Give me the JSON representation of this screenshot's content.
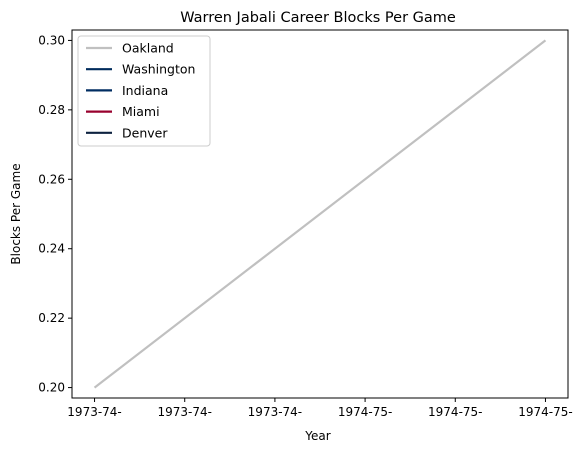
{
  "chart_data": {
    "type": "line",
    "title": "Warren Jabali Career Blocks Per Game",
    "xlabel": "Year",
    "ylabel": "Blocks Per Game",
    "x_ticks": [
      "1973-74-",
      "1973-74-",
      "1973-74-",
      "1974-75-",
      "1974-75-",
      "1974-75-"
    ],
    "y_ticks": [
      "0.20",
      "0.22",
      "0.24",
      "0.26",
      "0.28",
      "0.30"
    ],
    "ylim": [
      0.197,
      0.303
    ],
    "xlim": [
      -0.05,
      1.05
    ],
    "legend_position": "upper-left",
    "grid": false,
    "series": [
      {
        "name": "Oakland",
        "color": "#c0c0c0",
        "x": [
          0,
          1
        ],
        "values": [
          0.2,
          0.3
        ]
      },
      {
        "name": "Washington",
        "color": "#002b5c",
        "x": [],
        "values": []
      },
      {
        "name": "Indiana",
        "color": "#002d62",
        "x": [],
        "values": []
      },
      {
        "name": "Miami",
        "color": "#98002e",
        "x": [],
        "values": []
      },
      {
        "name": "Denver",
        "color": "#0e2240",
        "x": [],
        "values": []
      }
    ]
  }
}
